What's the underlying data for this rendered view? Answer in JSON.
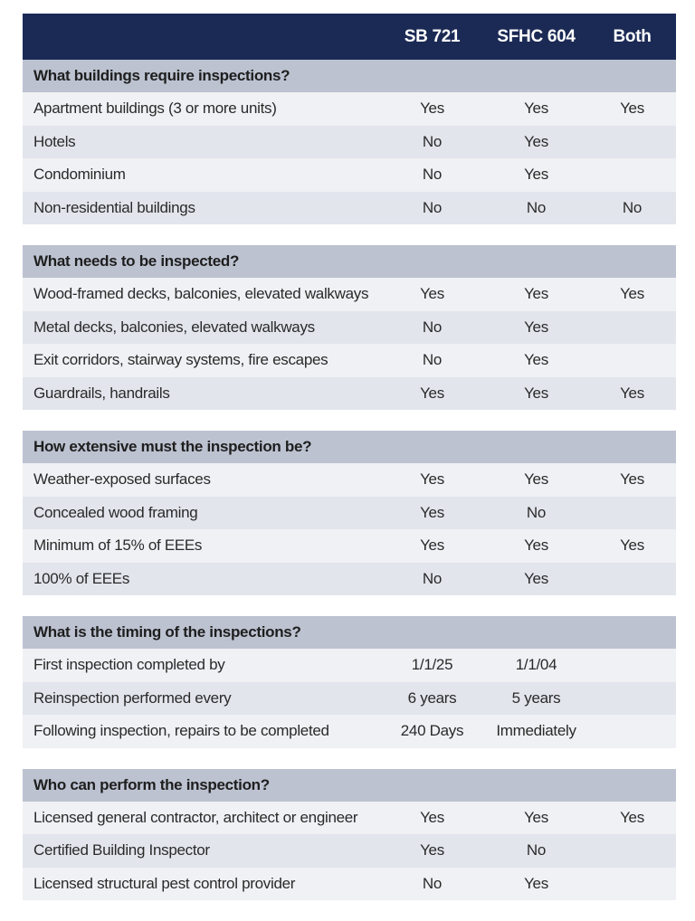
{
  "header": {
    "columns": [
      "SB 721",
      "SFHC 604",
      "Both"
    ]
  },
  "sections": [
    {
      "title": "What buildings require inspections?",
      "rows": [
        [
          "Apartment buildings (3 or more units)",
          "Yes",
          "Yes",
          "Yes"
        ],
        [
          "Hotels",
          "No",
          "Yes",
          ""
        ],
        [
          "Condominium",
          "No",
          "Yes",
          ""
        ],
        [
          "Non-residential buildings",
          "No",
          "No",
          "No"
        ]
      ]
    },
    {
      "title": "What needs to be inspected?",
      "rows": [
        [
          "Wood-framed decks, balconies, elevated walkways",
          "Yes",
          "Yes",
          "Yes"
        ],
        [
          "Metal decks, balconies, elevated walkways",
          "No",
          "Yes",
          ""
        ],
        [
          "Exit corridors, stairway systems, fire escapes",
          "No",
          "Yes",
          ""
        ],
        [
          "Guardrails, handrails",
          "Yes",
          "Yes",
          "Yes"
        ]
      ]
    },
    {
      "title": "How extensive must the inspection be?",
      "rows": [
        [
          "Weather-exposed surfaces",
          "Yes",
          "Yes",
          "Yes"
        ],
        [
          "Concealed wood framing",
          "Yes",
          "No",
          ""
        ],
        [
          "Minimum of 15% of EEEs",
          "Yes",
          "Yes",
          "Yes"
        ],
        [
          "100% of EEEs",
          "No",
          "Yes",
          ""
        ]
      ]
    },
    {
      "title": "What is the timing of the inspections?",
      "rows": [
        [
          "First inspection completed by",
          "1/1/25",
          "1/1/04",
          ""
        ],
        [
          "Reinspection performed every",
          "6 years",
          "5 years",
          ""
        ],
        [
          "Following inspection, repairs to be completed",
          "240 Days",
          "Immediately",
          ""
        ]
      ]
    },
    {
      "title": "Who can perform the inspection?",
      "rows": [
        [
          "Licensed general contractor, architect or engineer",
          "Yes",
          "Yes",
          "Yes"
        ],
        [
          "Certified Building Inspector",
          "Yes",
          "No",
          ""
        ],
        [
          "Licensed structural pest control provider",
          "No",
          "Yes",
          ""
        ]
      ]
    }
  ]
}
